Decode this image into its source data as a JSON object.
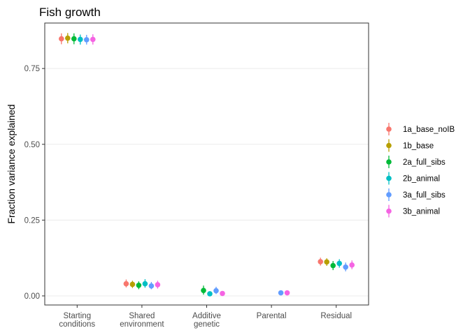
{
  "chart_data": {
    "type": "scatter",
    "title": "Fish growth",
    "xlabel": "",
    "ylabel": "Fraction variance explained",
    "ylim": [
      -0.03,
      0.9
    ],
    "yticks": [
      0.0,
      0.25,
      0.5,
      0.75
    ],
    "ytick_labels": [
      "0.00",
      "0.25",
      "0.50",
      "0.75"
    ],
    "grid": "horizontal",
    "legend_position": "right",
    "categories": [
      [
        "Starting",
        "conditions"
      ],
      [
        "Shared",
        "environment"
      ],
      [
        "Additive",
        "genetic"
      ],
      [
        "Parental"
      ],
      [
        "Residual"
      ]
    ],
    "series": [
      {
        "name": "1a_base_noIB",
        "color": "#F8766D",
        "values": [
          0.848,
          0.04,
          null,
          null,
          0.113
        ],
        "lower": [
          0.83,
          0.028,
          null,
          null,
          0.1
        ],
        "upper": [
          0.866,
          0.054,
          null,
          null,
          0.126
        ]
      },
      {
        "name": "1b_base",
        "color": "#B79F00",
        "values": [
          0.85,
          0.038,
          null,
          null,
          0.112
        ],
        "lower": [
          0.833,
          0.026,
          null,
          null,
          0.099
        ],
        "upper": [
          0.867,
          0.05,
          null,
          null,
          0.124
        ]
      },
      {
        "name": "2a_full_sibs",
        "color": "#00BA38",
        "values": [
          0.848,
          0.035,
          0.018,
          null,
          0.1
        ],
        "lower": [
          0.83,
          0.022,
          0.004,
          null,
          0.085
        ],
        "upper": [
          0.866,
          0.048,
          0.034,
          null,
          0.115
        ]
      },
      {
        "name": "2b_animal",
        "color": "#00BFC4",
        "values": [
          0.846,
          0.04,
          0.007,
          null,
          0.107
        ],
        "lower": [
          0.829,
          0.027,
          0.001,
          null,
          0.093
        ],
        "upper": [
          0.862,
          0.055,
          0.015,
          null,
          0.121
        ]
      },
      {
        "name": "3a_full_sibs",
        "color": "#619CFF",
        "values": [
          0.845,
          0.033,
          0.017,
          0.01,
          0.095
        ],
        "lower": [
          0.829,
          0.022,
          0.006,
          0.004,
          0.081
        ],
        "upper": [
          0.861,
          0.046,
          0.03,
          0.017,
          0.11
        ]
      },
      {
        "name": "3b_animal",
        "color": "#F564E3",
        "values": [
          0.846,
          0.037,
          0.008,
          0.01,
          0.102
        ],
        "lower": [
          0.829,
          0.024,
          0.002,
          0.004,
          0.088
        ],
        "upper": [
          0.863,
          0.05,
          0.016,
          0.016,
          0.117
        ]
      }
    ]
  }
}
